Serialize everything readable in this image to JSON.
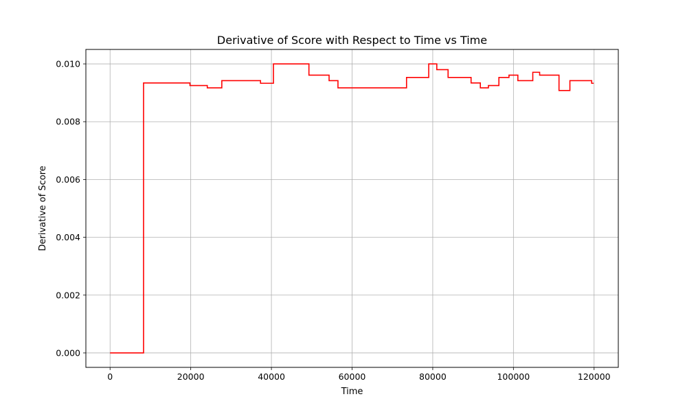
{
  "chart_data": {
    "type": "line",
    "title": "Derivative of Score with Respect to Time vs Time",
    "xlabel": "Time",
    "ylabel": "Derivative of Score",
    "xlim": [
      -6000,
      126000
    ],
    "ylim": [
      -0.0005,
      0.0105
    ],
    "xticks": [
      0,
      20000,
      40000,
      60000,
      80000,
      100000,
      120000
    ],
    "xtick_labels": [
      "0",
      "20000",
      "40000",
      "60000",
      "80000",
      "100000",
      "120000"
    ],
    "yticks": [
      0.0,
      0.002,
      0.004,
      0.006,
      0.008,
      0.01
    ],
    "ytick_labels": [
      "0.000",
      "0.002",
      "0.004",
      "0.006",
      "0.008",
      "0.010"
    ],
    "grid": true,
    "line_style": "step",
    "series": [
      {
        "color": "#ff0000",
        "x": [
          0,
          8300,
          19800,
          24100,
          27700,
          37300,
          40500,
          49300,
          54300,
          56500,
          73500,
          79000,
          81000,
          83800,
          89500,
          91800,
          93800,
          96400,
          98900,
          101100,
          104800,
          106500,
          111300,
          114000,
          119400,
          119900
        ],
        "y": [
          0.0,
          0.00934,
          0.00925,
          0.00917,
          0.00942,
          0.00933,
          0.01,
          0.00961,
          0.00942,
          0.00917,
          0.00953,
          0.01,
          0.0098,
          0.00953,
          0.00934,
          0.00917,
          0.00925,
          0.00953,
          0.00961,
          0.00942,
          0.00971,
          0.00961,
          0.00908,
          0.00942,
          0.00933,
          0.00933
        ]
      }
    ]
  }
}
